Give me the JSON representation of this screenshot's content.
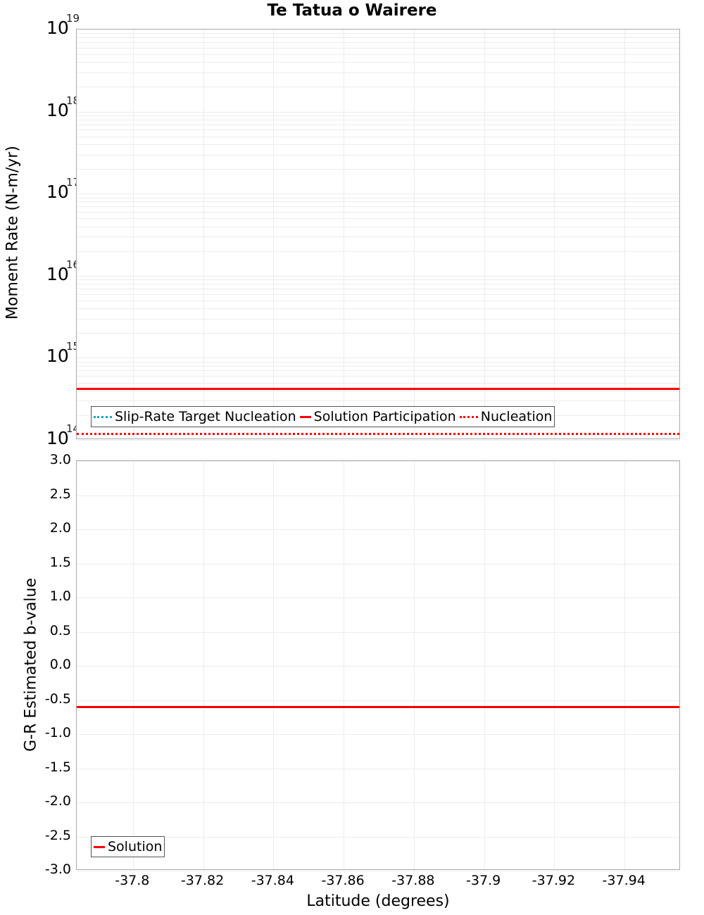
{
  "title": "Te Tatua o Wairere",
  "chart_data": [
    {
      "type": "line",
      "title": "Te Tatua o Wairere",
      "xlabel": "Latitude (degrees)",
      "ylabel": "Moment Rate (N-m/yr)",
      "yscale": "log",
      "ylim": [
        100000000000000.0,
        1e+19
      ],
      "xlim": [
        -37.784,
        -37.956
      ],
      "x_ticks": [
        "-37.8",
        "-37.82",
        "-37.84",
        "-37.86",
        "-37.88",
        "-37.9",
        "-37.92",
        "-37.94"
      ],
      "y_ticks": [
        {
          "base": "10",
          "exp": "19"
        },
        {
          "base": "10",
          "exp": "18"
        },
        {
          "base": "10",
          "exp": "17"
        },
        {
          "base": "10",
          "exp": "16"
        },
        {
          "base": "10",
          "exp": "15"
        },
        {
          "base": "10",
          "exp": "14"
        }
      ],
      "grid": true,
      "legend_position": "lower-left",
      "series": [
        {
          "name": "Slip-Rate Target Nucleation",
          "style": "dotted",
          "color": "#17a7b8",
          "x": [
            -37.784,
            -37.956
          ],
          "values": [
            null,
            null
          ]
        },
        {
          "name": "Solution Participation",
          "style": "solid",
          "color": "#ff0000",
          "x": [
            -37.784,
            -37.956
          ],
          "values": [
            420000000000000.0,
            420000000000000.0
          ]
        },
        {
          "name": "Nucleation",
          "style": "dotted",
          "color": "#ff0000",
          "x": [
            -37.784,
            -37.956
          ],
          "values": [
            120000000000000.0,
            120000000000000.0
          ]
        }
      ]
    },
    {
      "type": "line",
      "xlabel": "Latitude (degrees)",
      "ylabel": "G-R Estimated b-value",
      "ylim": [
        -3.0,
        3.0
      ],
      "xlim": [
        -37.784,
        -37.956
      ],
      "x_ticks": [
        "-37.8",
        "-37.82",
        "-37.84",
        "-37.86",
        "-37.88",
        "-37.9",
        "-37.92",
        "-37.94"
      ],
      "y_ticks": [
        "3.0",
        "2.5",
        "2.0",
        "1.5",
        "1.0",
        "0.5",
        "0.0",
        "-0.5",
        "-1.0",
        "-1.5",
        "-2.0",
        "-2.5",
        "-3.0"
      ],
      "grid": true,
      "legend_position": "lower-left",
      "series": [
        {
          "name": "Solution",
          "style": "solid",
          "color": "#ff0000",
          "x": [
            -37.784,
            -37.956
          ],
          "values": [
            -0.6,
            -0.6
          ]
        }
      ]
    }
  ]
}
